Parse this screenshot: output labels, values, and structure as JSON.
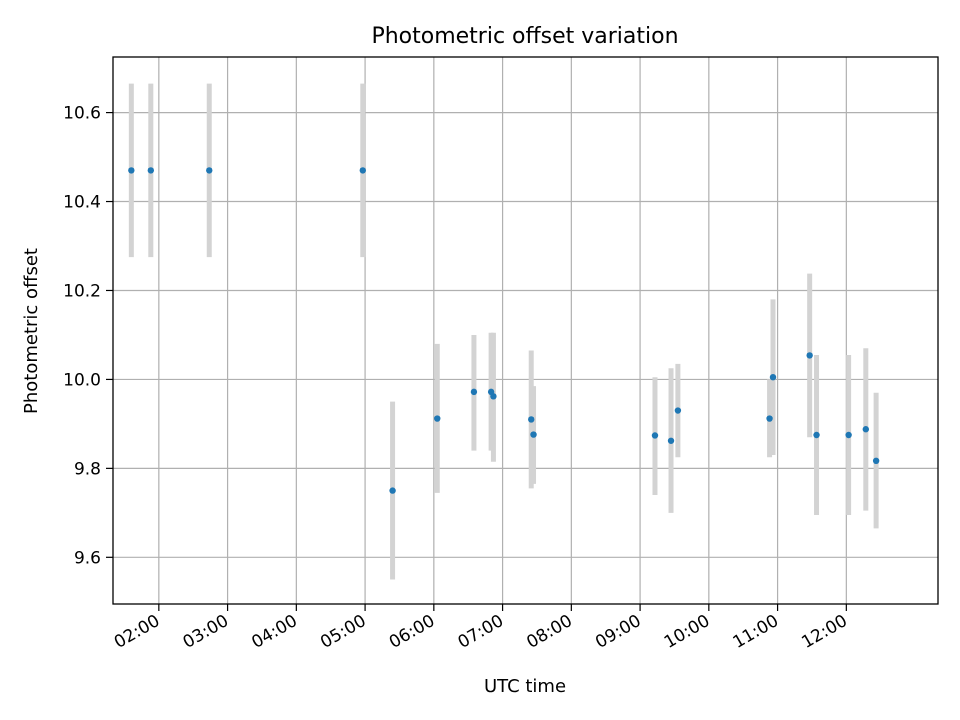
{
  "chart_data": {
    "type": "scatter",
    "title": "Photometric offset variation",
    "xlabel": "UTC time",
    "ylabel": "Photometric offset",
    "x_axis": {
      "kind": "time",
      "range": [
        "01:20",
        "13:20"
      ],
      "ticks": [
        "02:00",
        "03:00",
        "04:00",
        "05:00",
        "06:00",
        "07:00",
        "08:00",
        "09:00",
        "10:00",
        "11:00",
        "12:00"
      ]
    },
    "y_axis": {
      "range": [
        9.495,
        10.725
      ],
      "ticks": [
        9.6,
        9.8,
        10.0,
        10.2,
        10.4,
        10.6
      ],
      "tick_labels": [
        "9.6",
        "9.8",
        "10.0",
        "10.2",
        "10.4",
        "10.6"
      ]
    },
    "grid": true,
    "error_bar_color": "#d3d3d3",
    "marker_color": "#1f77b4",
    "series": [
      {
        "points": [
          {
            "x": "01:36",
            "y": 10.47,
            "ylow": 10.275,
            "yhigh": 10.665
          },
          {
            "x": "01:53",
            "y": 10.47,
            "ylow": 10.275,
            "yhigh": 10.665
          },
          {
            "x": "02:44",
            "y": 10.47,
            "ylow": 10.275,
            "yhigh": 10.665
          },
          {
            "x": "04:58",
            "y": 10.47,
            "ylow": 10.275,
            "yhigh": 10.665
          },
          {
            "x": "05:24",
            "y": 9.75,
            "ylow": 9.55,
            "yhigh": 9.95
          },
          {
            "x": "06:03",
            "y": 9.912,
            "ylow": 9.745,
            "yhigh": 10.08
          },
          {
            "x": "06:35",
            "y": 9.972,
            "ylow": 9.84,
            "yhigh": 10.1
          },
          {
            "x": "06:50",
            "y": 9.972,
            "ylow": 9.84,
            "yhigh": 10.105
          },
          {
            "x": "06:52",
            "y": 9.962,
            "ylow": 9.815,
            "yhigh": 10.105
          },
          {
            "x": "07:25",
            "y": 9.91,
            "ylow": 9.755,
            "yhigh": 10.065
          },
          {
            "x": "07:27",
            "y": 9.876,
            "ylow": 9.765,
            "yhigh": 9.985
          },
          {
            "x": "09:13",
            "y": 9.874,
            "ylow": 9.74,
            "yhigh": 10.005
          },
          {
            "x": "09:27",
            "y": 9.862,
            "ylow": 9.7,
            "yhigh": 10.025
          },
          {
            "x": "09:33",
            "y": 9.93,
            "ylow": 9.825,
            "yhigh": 10.035
          },
          {
            "x": "10:53",
            "y": 9.912,
            "ylow": 9.825,
            "yhigh": 10.0
          },
          {
            "x": "10:56",
            "y": 10.005,
            "ylow": 9.83,
            "yhigh": 10.18
          },
          {
            "x": "11:28",
            "y": 10.054,
            "ylow": 9.87,
            "yhigh": 10.238
          },
          {
            "x": "11:34",
            "y": 9.875,
            "ylow": 9.695,
            "yhigh": 10.055
          },
          {
            "x": "12:02",
            "y": 9.875,
            "ylow": 9.695,
            "yhigh": 10.055
          },
          {
            "x": "12:17",
            "y": 9.888,
            "ylow": 9.705,
            "yhigh": 10.07
          },
          {
            "x": "12:26",
            "y": 9.817,
            "ylow": 9.665,
            "yhigh": 9.97
          }
        ]
      }
    ]
  }
}
